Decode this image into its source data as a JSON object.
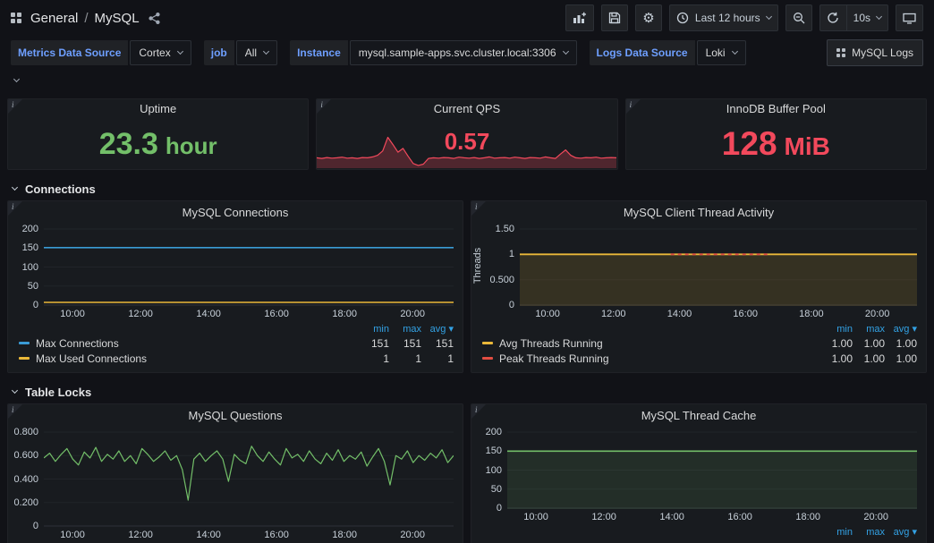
{
  "nav": {
    "breadcrumb": {
      "section": "General",
      "separator": "/",
      "page": "MySQL"
    },
    "time_range": "Last 12 hours",
    "refresh_interval": "10s"
  },
  "variables": [
    {
      "label": "Metrics Data Source",
      "value": "Cortex"
    },
    {
      "label": "job",
      "value": "All"
    },
    {
      "label": "Instance",
      "value": "mysql.sample-apps.svc.cluster.local:3306"
    },
    {
      "label": "Logs Data Source",
      "value": "Loki"
    }
  ],
  "logs_button": {
    "label": "MySQL Logs"
  },
  "sections": {
    "connections": "Connections",
    "table_locks": "Table Locks"
  },
  "stats": {
    "uptime": {
      "title": "Uptime",
      "value": "23.3",
      "unit": "hour",
      "color": "#73bf69"
    },
    "qps": {
      "title": "Current QPS",
      "value": "0.57",
      "color": "#f2495c"
    },
    "buffer_pool": {
      "title": "InnoDB Buffer Pool",
      "value": "128",
      "unit": "MiB",
      "color": "#f2495c"
    }
  },
  "charts": {
    "connections": {
      "type": "line",
      "title": "MySQL Connections",
      "y_max": 200,
      "y_ticks": [
        {
          "label": "200",
          "v": 200
        },
        {
          "label": "150",
          "v": 150
        },
        {
          "label": "100",
          "v": 100
        },
        {
          "label": "50",
          "v": 50
        },
        {
          "label": "0",
          "v": 0
        }
      ],
      "x_ticks": [
        {
          "label": "10:00",
          "f": 0.07
        },
        {
          "label": "12:00",
          "f": 0.236
        },
        {
          "label": "14:00",
          "f": 0.402
        },
        {
          "label": "16:00",
          "f": 0.568
        },
        {
          "label": "18:00",
          "f": 0.734
        },
        {
          "label": "20:00",
          "f": 0.9
        }
      ],
      "series": [
        {
          "name": "Max Connections",
          "color": "#3a9bd5",
          "flat": 151,
          "width": 1.6
        },
        {
          "name": "Max Used Connections",
          "color": "#eab839",
          "flat": 1,
          "display_flat": 7,
          "width": 1.6
        }
      ],
      "legend": {
        "headers": [
          "min",
          "max",
          "avg ▾"
        ],
        "rows": [
          {
            "name": "Max Connections",
            "color": "#3a9bd5",
            "values": [
              "151",
              "151",
              "151"
            ]
          },
          {
            "name": "Max Used Connections",
            "color": "#eab839",
            "values": [
              "1",
              "1",
              "1"
            ]
          }
        ]
      }
    },
    "thread_activity": {
      "type": "line",
      "title": "MySQL Client Thread Activity",
      "y_label": "Threads",
      "y_max": 1.5,
      "y_ticks": [
        {
          "label": "1.50",
          "v": 1.5
        },
        {
          "label": "1",
          "v": 1
        },
        {
          "label": "0.500",
          "v": 0.5
        },
        {
          "label": "0",
          "v": 0
        }
      ],
      "x_ticks": [
        {
          "label": "10:00",
          "f": 0.07
        },
        {
          "label": "12:00",
          "f": 0.236
        },
        {
          "label": "14:00",
          "f": 0.402
        },
        {
          "label": "16:00",
          "f": 0.568
        },
        {
          "label": "18:00",
          "f": 0.734
        },
        {
          "label": "20:00",
          "f": 0.9
        }
      ],
      "series": [
        {
          "name": "Avg Threads Running",
          "color": "#eab839",
          "flat": 1,
          "width": 1.8,
          "fill": 0.14
        },
        {
          "name": "Peak Threads Running",
          "color": "#e24d42",
          "flat": 1,
          "width": 1.8,
          "dash": [
            4,
            4
          ],
          "x_range": [
            0.38,
            0.63
          ]
        }
      ],
      "legend": {
        "headers": [
          "min",
          "max",
          "avg ▾"
        ],
        "rows": [
          {
            "name": "Avg Threads Running",
            "color": "#eab839",
            "values": [
              "1.00",
              "1.00",
              "1.00"
            ]
          },
          {
            "name": "Peak Threads Running",
            "color": "#e24d42",
            "values": [
              "1.00",
              "1.00",
              "1.00"
            ]
          }
        ]
      }
    },
    "questions": {
      "type": "line",
      "title": "MySQL Questions",
      "y_max": 0.8,
      "y_ticks": [
        {
          "label": "0.800",
          "v": 0.8
        },
        {
          "label": "0.600",
          "v": 0.6
        },
        {
          "label": "0.400",
          "v": 0.4
        },
        {
          "label": "0.200",
          "v": 0.2
        },
        {
          "label": "0",
          "v": 0
        }
      ],
      "x_ticks": [
        {
          "label": "10:00",
          "f": 0.07
        },
        {
          "label": "12:00",
          "f": 0.236
        },
        {
          "label": "14:00",
          "f": 0.402
        },
        {
          "label": "16:00",
          "f": 0.568
        },
        {
          "label": "18:00",
          "f": 0.734
        },
        {
          "label": "20:00",
          "f": 0.9
        }
      ],
      "series": [
        {
          "color": "#73bf69",
          "width": 1.2,
          "values": [
            0.58,
            0.62,
            0.55,
            0.61,
            0.66,
            0.57,
            0.52,
            0.63,
            0.58,
            0.67,
            0.55,
            0.61,
            0.57,
            0.64,
            0.55,
            0.6,
            0.53,
            0.66,
            0.61,
            0.55,
            0.59,
            0.64,
            0.56,
            0.6,
            0.48,
            0.22,
            0.57,
            0.62,
            0.55,
            0.6,
            0.64,
            0.57,
            0.38,
            0.61,
            0.56,
            0.53,
            0.68,
            0.6,
            0.55,
            0.63,
            0.57,
            0.52,
            0.66,
            0.58,
            0.61,
            0.55,
            0.64,
            0.57,
            0.53,
            0.62,
            0.56,
            0.65,
            0.55,
            0.6,
            0.57,
            0.63,
            0.51,
            0.59,
            0.66,
            0.55,
            0.35,
            0.6,
            0.57,
            0.64,
            0.54,
            0.6,
            0.56,
            0.62,
            0.58,
            0.65,
            0.54,
            0.6
          ]
        }
      ]
    },
    "thread_cache": {
      "type": "line",
      "title": "MySQL Thread Cache",
      "y_max": 200,
      "y_ticks": [
        {
          "label": "200",
          "v": 200
        },
        {
          "label": "150",
          "v": 150
        },
        {
          "label": "100",
          "v": 100
        },
        {
          "label": "50",
          "v": 50
        },
        {
          "label": "0",
          "v": 0
        }
      ],
      "x_ticks": [
        {
          "label": "10:00",
          "f": 0.07
        },
        {
          "label": "12:00",
          "f": 0.236
        },
        {
          "label": "14:00",
          "f": 0.402
        },
        {
          "label": "16:00",
          "f": 0.568
        },
        {
          "label": "18:00",
          "f": 0.734
        },
        {
          "label": "20:00",
          "f": 0.9
        }
      ],
      "series": [
        {
          "color": "#73bf69",
          "flat": 150,
          "width": 1.6,
          "fill": 0.12
        }
      ],
      "legend": {
        "headers": [
          "min",
          "max",
          "avg ▾"
        ],
        "rows": []
      }
    },
    "qps_spark": {
      "type": "line",
      "y_max": 1.05,
      "series": [
        {
          "color": "#f2495c",
          "width": 1.2,
          "fill": 0.25,
          "values": [
            0.3,
            0.28,
            0.31,
            0.29,
            0.3,
            0.32,
            0.29,
            0.3,
            0.28,
            0.31,
            0.3,
            0.33,
            0.38,
            0.52,
            0.95,
            0.72,
            0.48,
            0.6,
            0.35,
            0.12,
            0.06,
            0.1,
            0.28,
            0.3,
            0.29,
            0.31,
            0.3,
            0.28,
            0.32,
            0.3,
            0.29,
            0.31,
            0.28,
            0.3,
            0.33,
            0.29,
            0.3,
            0.31,
            0.29,
            0.32,
            0.3,
            0.28,
            0.31,
            0.3,
            0.29,
            0.33,
            0.3,
            0.28,
            0.42,
            0.55,
            0.38,
            0.3,
            0.29,
            0.31,
            0.3,
            0.32,
            0.29,
            0.3,
            0.31,
            0.3
          ]
        }
      ]
    }
  }
}
